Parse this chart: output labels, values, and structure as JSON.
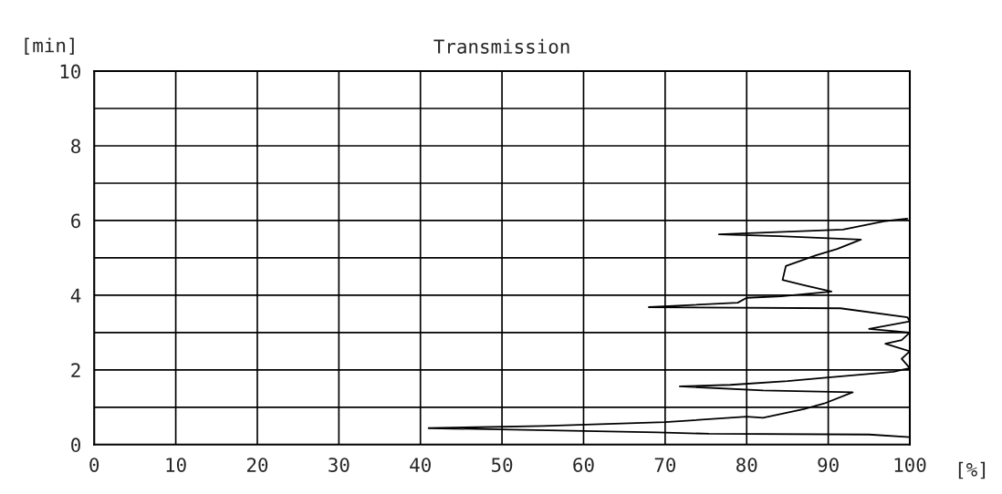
{
  "chart_data": {
    "type": "line",
    "title": "Transmission",
    "xlabel": "[%]",
    "ylabel": "[min]",
    "xlim": [
      0,
      100
    ],
    "ylim": [
      0,
      10
    ],
    "xticks": [
      0,
      10,
      20,
      30,
      40,
      50,
      60,
      70,
      80,
      90,
      100
    ],
    "yticks": [
      0,
      {
        "value": 1,
        "label": null
      },
      2,
      {
        "value": 3,
        "label": null
      },
      4,
      {
        "value": 5,
        "label": null
      },
      6,
      {
        "value": 7,
        "label": null
      },
      8,
      {
        "value": 9,
        "label": null
      },
      10
    ],
    "grid": true,
    "marker": "none",
    "line_style": "solid",
    "series": [
      {
        "color": "#000000",
        "x": [
          100,
          95,
          75.4,
          69,
          41,
          55,
          70,
          80,
          82,
          87,
          89.5,
          93,
          82,
          71.8,
          78,
          85,
          90,
          98,
          100,
          99,
          100,
          97,
          99,
          100,
          95,
          100,
          99.7,
          91.5,
          68,
          78.9,
          80,
          84.2,
          90.4,
          87,
          84.4,
          84.8,
          88.5,
          91.1,
          94,
          84,
          76.6,
          91.8,
          96.8,
          99.7
        ],
        "values": [
          0.2,
          0.27,
          0.29,
          0.33,
          0.44,
          0.5,
          0.6,
          0.75,
          0.72,
          0.95,
          1.1,
          1.4,
          1.45,
          1.56,
          1.6,
          1.7,
          1.8,
          1.95,
          2.05,
          2.3,
          2.5,
          2.7,
          2.8,
          3.0,
          3.1,
          3.3,
          3.41,
          3.65,
          3.68,
          3.8,
          3.93,
          3.97,
          4.1,
          4.27,
          4.41,
          4.78,
          5.07,
          5.24,
          5.49,
          5.58,
          5.63,
          5.76,
          5.98,
          6.05
        ]
      }
    ]
  }
}
